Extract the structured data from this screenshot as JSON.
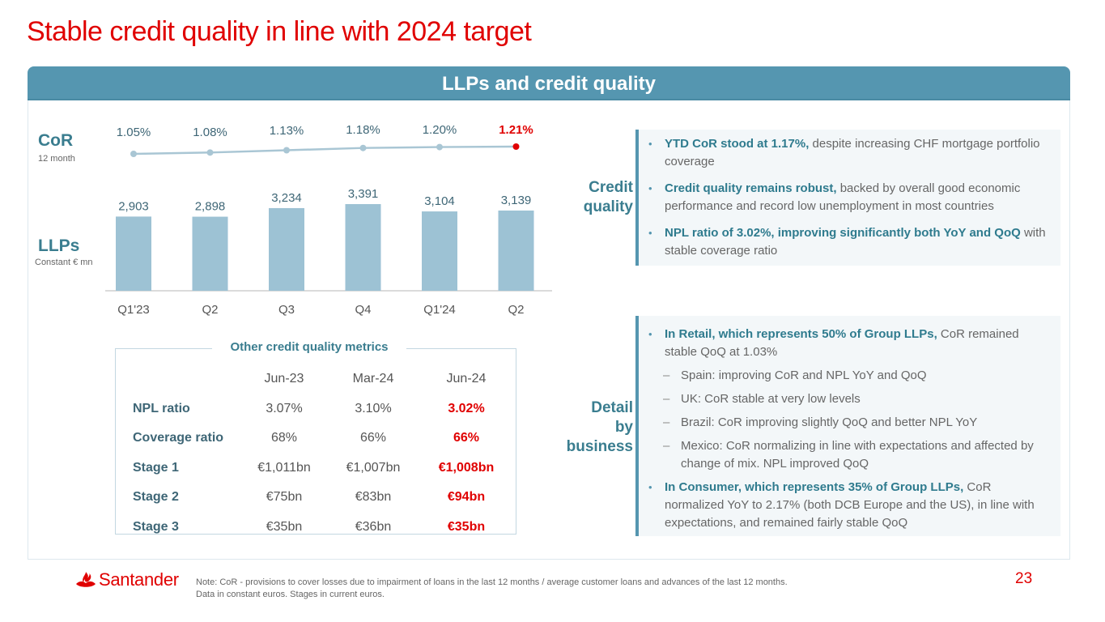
{
  "page": {
    "title": "Stable credit quality in line with 2024 target",
    "section_header": "LLPs and credit quality",
    "page_number": "23"
  },
  "colors": {
    "brand_red": "#e00000",
    "header_teal": "#5596b0",
    "bar_blue": "#9dc2d4",
    "line_point": "#a9c6d4",
    "text_teal": "#3a7d8f"
  },
  "chart_data": {
    "type": "bar",
    "title": "",
    "categories": [
      "Q1'23",
      "Q2",
      "Q3",
      "Q4",
      "Q1'24",
      "Q2"
    ],
    "series": [
      {
        "name": "LLPs",
        "label": "LLPs",
        "sublabel": "Constant € mn",
        "type": "bar",
        "values": [
          2903,
          2898,
          3234,
          3391,
          3104,
          3139
        ],
        "value_labels": [
          "2,903",
          "2,898",
          "3,234",
          "3,391",
          "3,104",
          "3,139"
        ]
      },
      {
        "name": "CoR",
        "label": "CoR",
        "sublabel": "12 month",
        "type": "line",
        "unit": "%",
        "values": [
          1.05,
          1.08,
          1.13,
          1.18,
          1.2,
          1.21
        ],
        "value_labels": [
          "1.05%",
          "1.08%",
          "1.13%",
          "1.18%",
          "1.20%",
          "1.21%"
        ],
        "highlight_last": true
      }
    ],
    "xlabel": "",
    "ylabel": "",
    "ylim": [
      0,
      3391
    ],
    "grid": false,
    "legend": "left"
  },
  "metrics": {
    "title": "Other credit quality metrics",
    "columns": [
      "Jun-23",
      "Mar-24",
      "Jun-24"
    ],
    "rows": [
      {
        "label": "NPL ratio",
        "values": [
          "3.07%",
          "3.10%",
          "3.02%"
        ]
      },
      {
        "label": "Coverage ratio",
        "values": [
          "68%",
          "66%",
          "66%"
        ]
      },
      {
        "label": "Stage 1",
        "values": [
          "€1,011bn",
          "€1,007bn",
          "€1,008bn"
        ]
      },
      {
        "label": "Stage 2",
        "values": [
          "€75bn",
          "€83bn",
          "€94bn"
        ]
      },
      {
        "label": "Stage 3",
        "values": [
          "€35bn",
          "€36bn",
          "€35bn"
        ]
      }
    ]
  },
  "credit_quality": {
    "label_line1": "Credit",
    "label_line2": "quality",
    "bullets": [
      {
        "strong": "YTD CoR stood at 1.17%,",
        "text": " despite increasing CHF mortgage portfolio coverage"
      },
      {
        "strong": "Credit quality remains robust,",
        "text": " backed by overall good economic performance and record low unemployment in most countries"
      },
      {
        "strong": "NPL ratio of 3.02%, improving significantly both YoY and QoQ",
        "text": " with stable coverage ratio"
      }
    ]
  },
  "detail_by_business": {
    "label_line1": "Detail",
    "label_line2": "by",
    "label_line3": "business",
    "bullets": [
      {
        "strong": "In Retail, which represents 50% of Group LLPs,",
        "text": " CoR remained stable QoQ at 1.03%"
      },
      {
        "sub": "Spain: improving CoR and NPL YoY and QoQ"
      },
      {
        "sub": "UK: CoR stable at very low levels"
      },
      {
        "sub": "Brazil: CoR improving slightly QoQ and better NPL YoY"
      },
      {
        "sub": "Mexico: CoR normalizing in line with expectations and affected by change of mix. NPL improved QoQ"
      },
      {
        "strong": "In Consumer, which represents 35% of Group LLPs,",
        "text": " CoR normalized YoY to 2.17% (both DCB Europe and the US), in line with expectations, and remained fairly stable QoQ"
      }
    ],
    "bullet_glyph": "•",
    "dash_glyph": "–"
  },
  "footer": {
    "logo_text": "Santander",
    "note_line1": "Note: CoR - provisions to cover losses due to impairment of loans in the last 12 months / average customer loans and advances of the last 12 months.",
    "note_line2": "Data in constant euros. Stages in current euros."
  }
}
